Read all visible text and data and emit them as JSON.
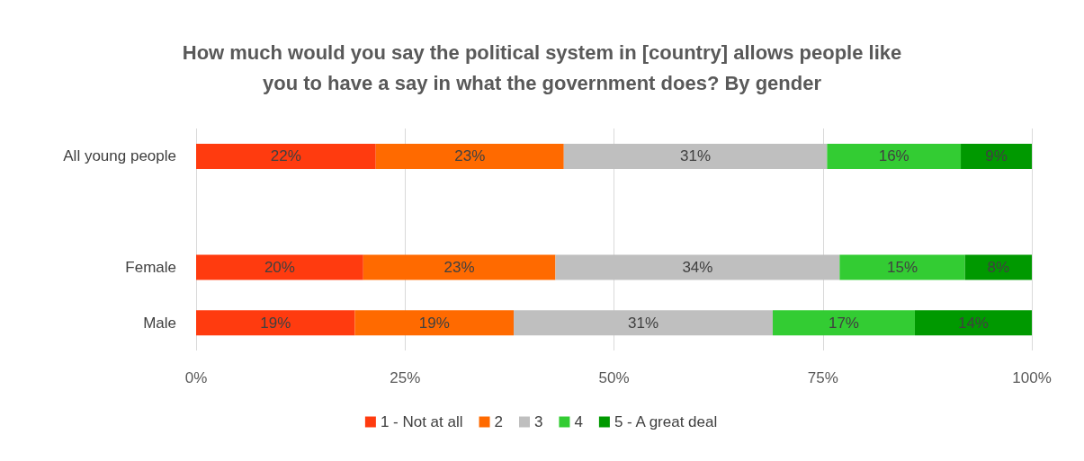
{
  "chart_data": {
    "type": "bar",
    "orientation": "horizontal",
    "stacked": true,
    "title": "How much would you say the political system in [country] allows people like\nyou to have a say in what the government does? By gender",
    "categories": [
      "All young people",
      null,
      "Female",
      "Male"
    ],
    "series": [
      {
        "name": "1 - Not at all",
        "color": "#ff3b0f",
        "values": [
          21.5,
          null,
          20,
          19
        ],
        "value_labels": [
          "22%",
          null,
          "20%",
          "19%"
        ]
      },
      {
        "name": "2",
        "color": "#ff6a00",
        "values": [
          22.5,
          null,
          23,
          19
        ],
        "value_labels": [
          "23%",
          null,
          "23%",
          "19%"
        ]
      },
      {
        "name": "3",
        "color": "#bfbfbf",
        "values": [
          31.5,
          null,
          34,
          31
        ],
        "value_labels": [
          "31%",
          null,
          "34%",
          "31%"
        ]
      },
      {
        "name": "4",
        "color": "#33cc33",
        "values": [
          16,
          null,
          15,
          17
        ],
        "value_labels": [
          "16%",
          null,
          "15%",
          "17%"
        ]
      },
      {
        "name": "5 - A great deal",
        "color": "#009900",
        "values": [
          8.5,
          null,
          8,
          14
        ],
        "value_labels": [
          "9%",
          null,
          "8%",
          "14%"
        ]
      }
    ],
    "xlim": [
      0,
      100
    ],
    "xticks": [
      {
        "value": 0,
        "label": "0%"
      },
      {
        "value": 25,
        "label": "25%"
      },
      {
        "value": 50,
        "label": "50%"
      },
      {
        "value": 75,
        "label": "75%"
      },
      {
        "value": 100,
        "label": "100%"
      }
    ],
    "grid": "x",
    "legend": "bottom"
  }
}
